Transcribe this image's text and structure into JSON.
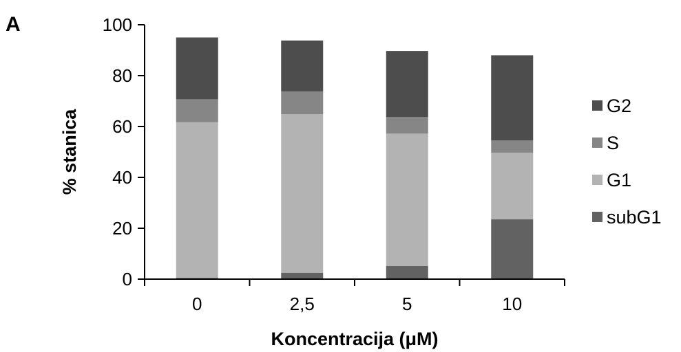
{
  "panel_label": "A",
  "chart_data": {
    "type": "bar",
    "stacked": true,
    "categories": [
      "0",
      "2,5",
      "5",
      "10"
    ],
    "series": [
      {
        "name": "subG1",
        "color": "#626262",
        "values": [
          0.5,
          2.5,
          5.2,
          23.5
        ]
      },
      {
        "name": "G1",
        "color": "#b3b3b3",
        "values": [
          61.2,
          62.3,
          52.0,
          26.2
        ]
      },
      {
        "name": "S",
        "color": "#868686",
        "values": [
          9.0,
          9.0,
          6.5,
          4.8
        ]
      },
      {
        "name": "G2",
        "color": "#4d4d4d",
        "values": [
          24.3,
          20.0,
          26.0,
          33.5
        ]
      }
    ],
    "legend_order": [
      "G2",
      "S",
      "G1",
      "subG1"
    ],
    "legend_position": "right",
    "xlabel": "Koncentracija (μM)",
    "ylabel": "% stanica",
    "ylim": [
      0,
      100
    ],
    "yticks": [
      "0",
      "20",
      "40",
      "60",
      "80",
      "100"
    ],
    "grid": false
  }
}
